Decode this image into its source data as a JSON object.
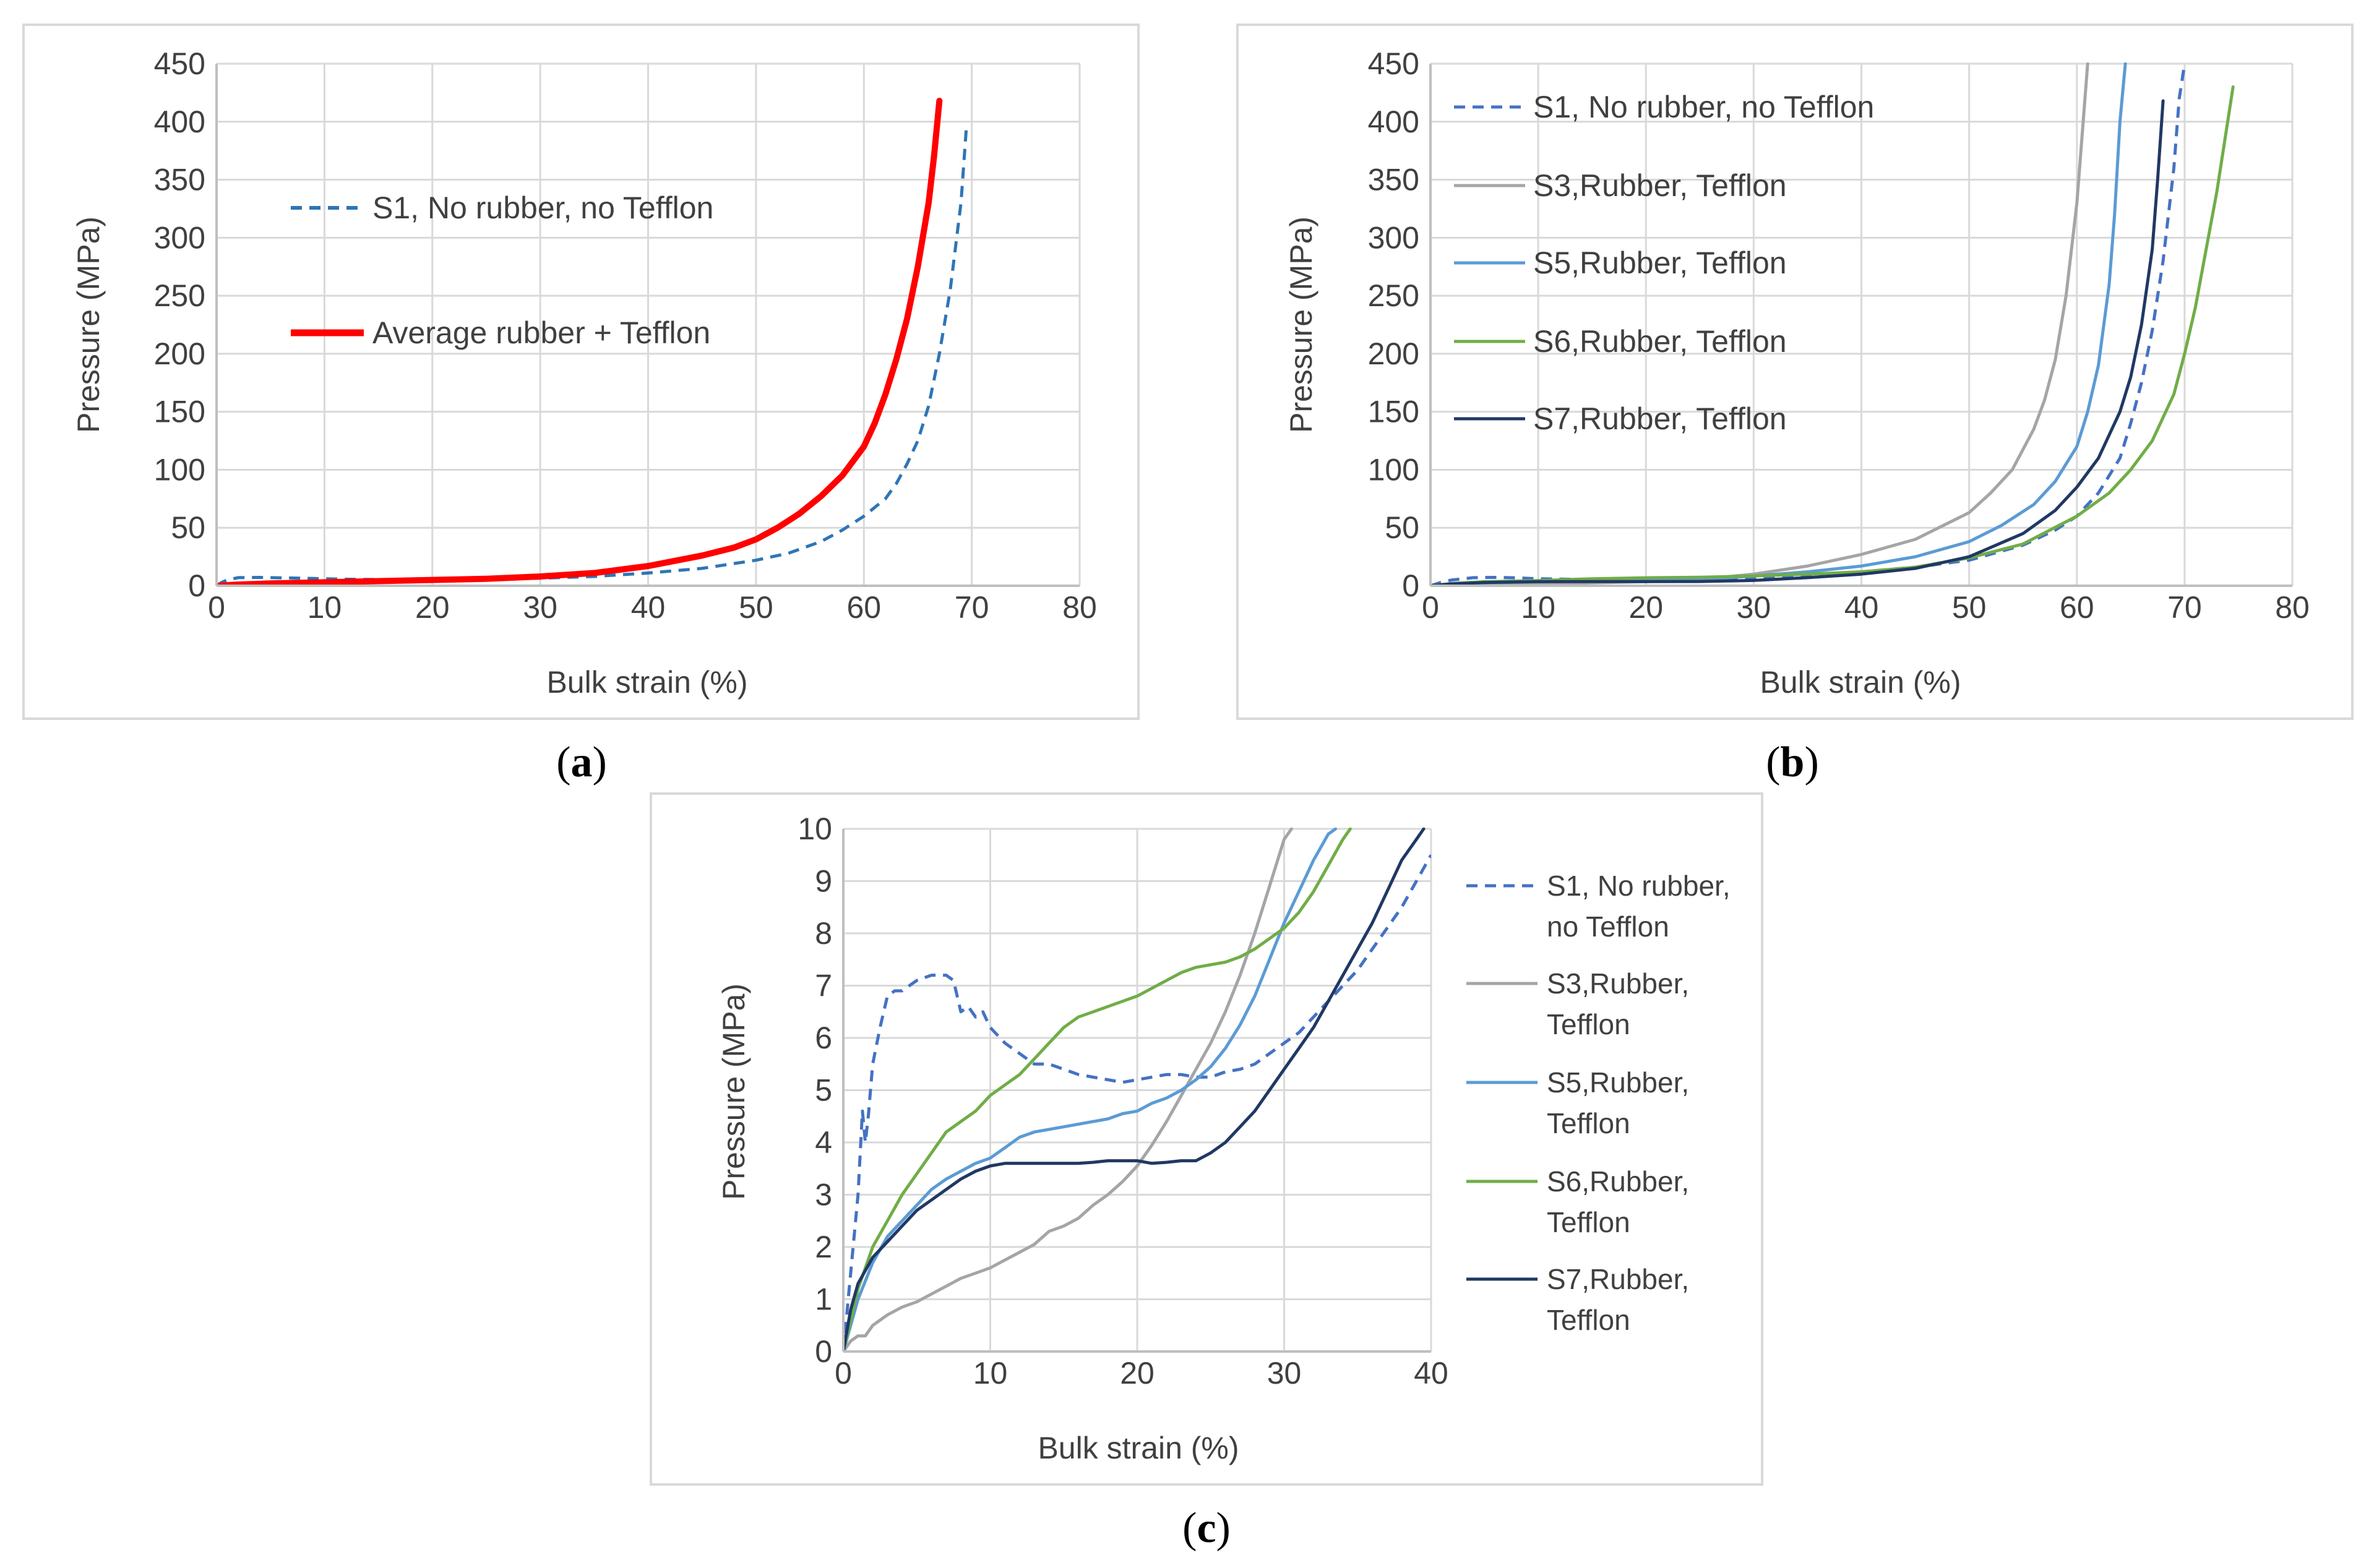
{
  "chart_data": [
    {
      "panel": "a",
      "panel_label": {
        "open": "(",
        "letter": "a",
        "close": ")"
      },
      "type": "line",
      "xlabel": "Bulk strain (%)",
      "ylabel": "Pressure (MPa)",
      "xlim": [
        0,
        80
      ],
      "ylim": [
        0,
        450
      ],
      "xticks": [
        0,
        10,
        20,
        30,
        40,
        50,
        60,
        70,
        80
      ],
      "yticks": [
        0,
        50,
        100,
        150,
        200,
        250,
        300,
        350,
        400,
        450
      ],
      "grid": true,
      "legend_position": "upper-left",
      "series": [
        {
          "name": "S1, No rubber, no Tefflon",
          "color": "#2E75B6",
          "dash": "dashed",
          "width": 5,
          "x": [
            0,
            0.5,
            1,
            2,
            4,
            6,
            8,
            10,
            13,
            16,
            20,
            25,
            30,
            35,
            40,
            45,
            50,
            53,
            56,
            58,
            60,
            62,
            63,
            64,
            65,
            66,
            67,
            68,
            69,
            69.5
          ],
          "y": [
            0,
            3,
            5,
            7,
            7.2,
            6.8,
            6.5,
            6,
            5.5,
            5.3,
            5.3,
            5.8,
            6.5,
            8,
            11,
            15,
            22,
            28,
            38,
            48,
            60,
            75,
            88,
            105,
            125,
            155,
            200,
            255,
            330,
            395
          ]
        },
        {
          "name": "Average rubber + Tefflon",
          "color": "#FF0000",
          "dash": "solid",
          "width": 10,
          "x": [
            0,
            2,
            5,
            10,
            15,
            20,
            25,
            30,
            35,
            40,
            45,
            48,
            50,
            52,
            54,
            56,
            58,
            60,
            61,
            62,
            63,
            64,
            65,
            66,
            66.5,
            67
          ],
          "y": [
            0,
            1,
            2,
            3,
            4,
            5,
            6,
            8,
            11,
            17,
            26,
            33,
            40,
            50,
            62,
            77,
            95,
            120,
            140,
            165,
            195,
            230,
            275,
            330,
            370,
            418
          ]
        }
      ]
    },
    {
      "panel": "b",
      "panel_label": {
        "open": "(",
        "letter": "b",
        "close": ")"
      },
      "type": "line",
      "xlabel": "Bulk strain (%)",
      "ylabel": "Pressure (MPa)",
      "xlim": [
        0,
        80
      ],
      "ylim": [
        0,
        450
      ],
      "xticks": [
        0,
        10,
        20,
        30,
        40,
        50,
        60,
        70,
        80
      ],
      "yticks": [
        0,
        50,
        100,
        150,
        200,
        250,
        300,
        350,
        400,
        450
      ],
      "grid": true,
      "legend_position": "upper-left",
      "series": [
        {
          "name": "S1, No rubber, no Tefflon",
          "color": "#4472C4",
          "dash": "dashed",
          "width": 5,
          "x": [
            0,
            1,
            2,
            4,
            6,
            8,
            10,
            15,
            20,
            25,
            30,
            35,
            40,
            45,
            50,
            55,
            58,
            60,
            62,
            64,
            65,
            66,
            67,
            68,
            69,
            69.5,
            70
          ],
          "y": [
            0,
            3,
            5,
            7,
            7.2,
            6.8,
            6,
            5.3,
            5.5,
            6,
            7,
            9,
            12,
            16,
            22,
            35,
            48,
            60,
            80,
            110,
            140,
            175,
            220,
            280,
            360,
            420,
            450
          ]
        },
        {
          "name": "S3,Rubber, Tefflon",
          "color": "#A5A5A5",
          "dash": "solid",
          "width": 5,
          "x": [
            0,
            2,
            5,
            10,
            15,
            20,
            25,
            30,
            35,
            40,
            45,
            50,
            52,
            54,
            56,
            57,
            58,
            59,
            60,
            60.5,
            61
          ],
          "y": [
            0,
            0.6,
            1,
            1.6,
            2.5,
            3.5,
            5.5,
            10,
            17,
            27,
            40,
            63,
            80,
            100,
            135,
            160,
            195,
            250,
            330,
            390,
            450
          ]
        },
        {
          "name": "S5,Rubber, Tefflon",
          "color": "#5B9BD5",
          "dash": "solid",
          "width": 5,
          "x": [
            0,
            2,
            5,
            10,
            15,
            20,
            25,
            30,
            35,
            40,
            45,
            50,
            53,
            56,
            58,
            60,
            61,
            62,
            63,
            63.5,
            64,
            64.5
          ],
          "y": [
            0,
            1.5,
            2.5,
            3.7,
            4.3,
            4.5,
            5.2,
            8.5,
            12,
            17,
            25,
            38,
            52,
            70,
            90,
            120,
            150,
            190,
            260,
            320,
            400,
            450
          ]
        },
        {
          "name": "S6,Rubber, Tefflon",
          "color": "#70AD47",
          "dash": "solid",
          "width": 5,
          "x": [
            0,
            2,
            5,
            10,
            15,
            20,
            25,
            30,
            35,
            40,
            45,
            50,
            55,
            60,
            63,
            65,
            67,
            69,
            70,
            71,
            72,
            73,
            74,
            74.5
          ],
          "y": [
            0,
            2,
            3.5,
            4.5,
            6,
            6.9,
            7.3,
            8.5,
            10,
            12,
            16,
            24,
            36,
            60,
            80,
            100,
            125,
            165,
            200,
            240,
            290,
            340,
            400,
            430
          ]
        },
        {
          "name": "S7,Rubber, Tefflon",
          "color": "#203864",
          "dash": "solid",
          "width": 5,
          "x": [
            0,
            2,
            5,
            10,
            15,
            20,
            25,
            30,
            35,
            40,
            45,
            50,
            55,
            58,
            60,
            62,
            64,
            65,
            66,
            67,
            67.5,
            68
          ],
          "y": [
            0,
            1.6,
            2.8,
            3.5,
            3.6,
            3.65,
            3.7,
            4.6,
            7,
            10,
            15,
            25,
            45,
            65,
            85,
            110,
            150,
            180,
            225,
            290,
            350,
            418
          ]
        }
      ]
    },
    {
      "panel": "c",
      "panel_label": {
        "open": "(",
        "letter": "c",
        "close": ")"
      },
      "type": "line",
      "xlabel": "Bulk strain (%)",
      "ylabel": "Pressure (MPa)",
      "xlim": [
        0,
        40
      ],
      "ylim": [
        0,
        10
      ],
      "xticks": [
        0,
        10,
        20,
        30,
        40
      ],
      "yticks": [
        0,
        1,
        2,
        3,
        4,
        5,
        6,
        7,
        8,
        9,
        10
      ],
      "grid": true,
      "legend_position": "right",
      "series": [
        {
          "name": "S1, No rubber, no Tefflon",
          "legend_lines": [
            "S1, No rubber,",
            "no Tefflon"
          ],
          "color": "#4472C4",
          "dash": "dashed",
          "width": 5,
          "x": [
            0,
            0.5,
            1,
            1.3,
            1.5,
            1.7,
            2,
            2.5,
            3,
            3.5,
            4,
            5,
            6,
            7,
            7.5,
            8,
            8.5,
            9,
            9.5,
            10,
            11,
            12,
            13,
            14,
            15,
            16,
            17,
            18,
            19,
            20,
            21,
            22,
            23,
            24,
            25,
            26,
            27,
            28,
            29,
            30,
            31,
            32,
            33,
            34,
            35,
            36,
            37,
            38,
            39,
            40
          ],
          "y": [
            0,
            1.5,
            3,
            4.6,
            4,
            4.5,
            5.5,
            6.2,
            6.8,
            6.9,
            6.9,
            7.1,
            7.2,
            7.2,
            7.1,
            6.5,
            6.6,
            6.4,
            6.5,
            6.2,
            5.9,
            5.7,
            5.5,
            5.5,
            5.4,
            5.3,
            5.25,
            5.2,
            5.15,
            5.2,
            5.25,
            5.3,
            5.3,
            5.25,
            5.25,
            5.35,
            5.4,
            5.5,
            5.7,
            5.9,
            6.1,
            6.4,
            6.7,
            7,
            7.3,
            7.7,
            8.1,
            8.5,
            9,
            9.5
          ]
        },
        {
          "name": "S3,Rubber, Tefflon",
          "legend_lines": [
            "S3,Rubber,",
            "Tefflon"
          ],
          "color": "#A5A5A5",
          "dash": "solid",
          "width": 5,
          "x": [
            0,
            0.5,
            1,
            1.5,
            2,
            3,
            4,
            5,
            6,
            7,
            8,
            9,
            10,
            11,
            12,
            13,
            14,
            15,
            16,
            17,
            18,
            19,
            20,
            21,
            22,
            23,
            24,
            25,
            26,
            27,
            28,
            29,
            30,
            30.5
          ],
          "y": [
            0,
            0.2,
            0.3,
            0.3,
            0.5,
            0.7,
            0.85,
            0.95,
            1.1,
            1.25,
            1.4,
            1.5,
            1.6,
            1.75,
            1.9,
            2.05,
            2.3,
            2.4,
            2.55,
            2.8,
            3.0,
            3.25,
            3.55,
            3.95,
            4.4,
            4.9,
            5.4,
            5.9,
            6.5,
            7.2,
            8.0,
            8.9,
            9.8,
            10
          ]
        },
        {
          "name": "S5,Rubber, Tefflon",
          "legend_lines": [
            "S5,Rubber,",
            "Tefflon"
          ],
          "color": "#5B9BD5",
          "dash": "solid",
          "width": 5,
          "x": [
            0,
            0.5,
            1,
            2,
            3,
            4,
            5,
            6,
            7,
            8,
            9,
            10,
            11,
            12,
            13,
            14,
            15,
            16,
            17,
            18,
            19,
            20,
            21,
            22,
            23,
            24,
            25,
            26,
            27,
            28,
            29,
            30,
            31,
            32,
            33,
            33.5
          ],
          "y": [
            0,
            0.5,
            1,
            1.7,
            2.2,
            2.5,
            2.8,
            3.1,
            3.3,
            3.45,
            3.6,
            3.7,
            3.9,
            4.1,
            4.2,
            4.25,
            4.3,
            4.35,
            4.4,
            4.45,
            4.55,
            4.6,
            4.75,
            4.85,
            5.0,
            5.2,
            5.45,
            5.8,
            6.25,
            6.8,
            7.5,
            8.2,
            8.8,
            9.4,
            9.9,
            10
          ]
        },
        {
          "name": "S6,Rubber, Tefflon",
          "legend_lines": [
            "S6,Rubber,",
            "Tefflon"
          ],
          "color": "#70AD47",
          "dash": "solid",
          "width": 5,
          "x": [
            0,
            0.5,
            1,
            2,
            3,
            4,
            5,
            6,
            7,
            8,
            9,
            10,
            11,
            12,
            13,
            14,
            15,
            16,
            17,
            18,
            19,
            20,
            21,
            22,
            23,
            24,
            25,
            26,
            27,
            28,
            29,
            30,
            31,
            32,
            33,
            34,
            34.5
          ],
          "y": [
            0,
            0.6,
            1.2,
            2,
            2.5,
            3,
            3.4,
            3.8,
            4.2,
            4.4,
            4.6,
            4.9,
            5.1,
            5.3,
            5.6,
            5.9,
            6.2,
            6.4,
            6.5,
            6.6,
            6.7,
            6.8,
            6.95,
            7.1,
            7.25,
            7.35,
            7.4,
            7.45,
            7.55,
            7.7,
            7.9,
            8.1,
            8.4,
            8.8,
            9.3,
            9.8,
            10
          ]
        },
        {
          "name": "S7,Rubber, Tefflon",
          "legend_lines": [
            "S7,Rubber,",
            "Tefflon"
          ],
          "color": "#203864",
          "dash": "solid",
          "width": 5,
          "x": [
            0,
            0.5,
            1,
            2,
            3,
            4,
            5,
            6,
            7,
            8,
            9,
            10,
            11,
            12,
            13,
            14,
            15,
            16,
            17,
            18,
            19,
            20,
            21,
            22,
            23,
            24,
            25,
            26,
            27,
            28,
            29,
            30,
            31,
            32,
            33,
            34,
            35,
            36,
            37,
            38,
            39,
            39.5
          ],
          "y": [
            0,
            0.8,
            1.3,
            1.8,
            2.1,
            2.4,
            2.7,
            2.9,
            3.1,
            3.3,
            3.45,
            3.55,
            3.6,
            3.6,
            3.6,
            3.6,
            3.6,
            3.6,
            3.62,
            3.65,
            3.65,
            3.65,
            3.6,
            3.62,
            3.65,
            3.65,
            3.8,
            4.0,
            4.3,
            4.6,
            5.0,
            5.4,
            5.8,
            6.2,
            6.7,
            7.2,
            7.7,
            8.2,
            8.8,
            9.4,
            9.8,
            10
          ]
        }
      ]
    }
  ]
}
